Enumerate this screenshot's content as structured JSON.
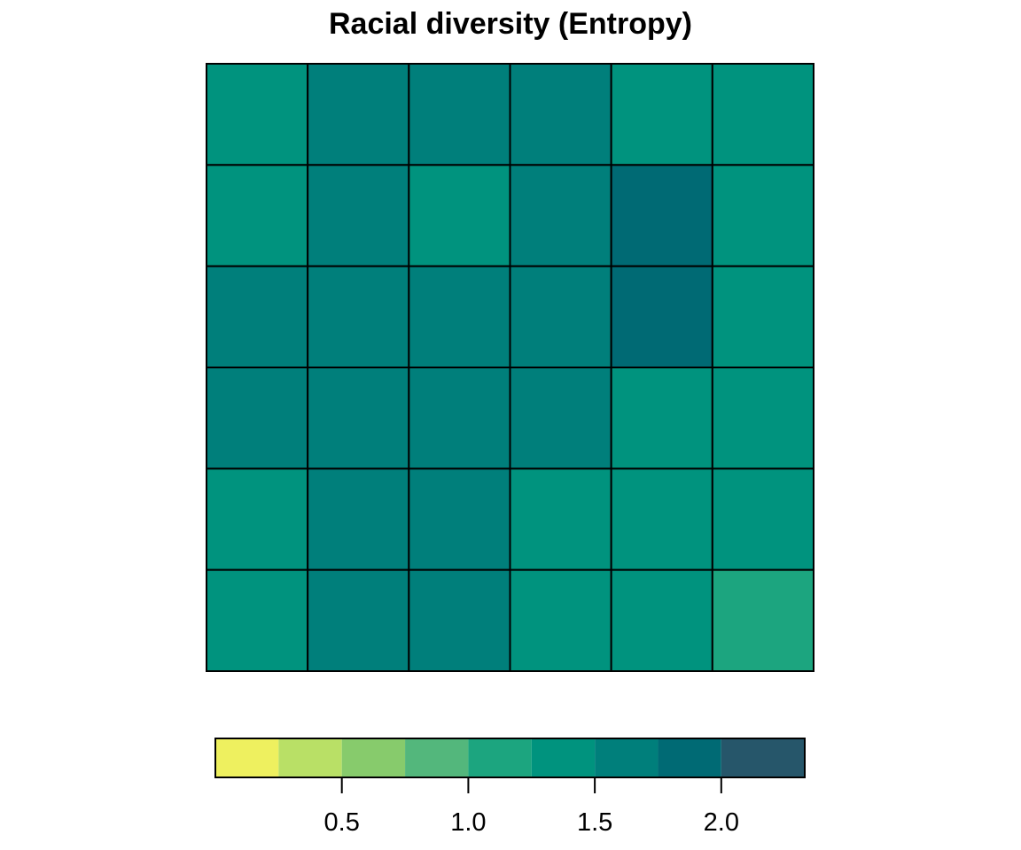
{
  "chart_data": {
    "type": "heatmap",
    "title": "Racial diversity (Entropy)",
    "xlabel": "",
    "ylabel": "",
    "grid": {
      "rows": 6,
      "cols": 6,
      "values": [
        [
          1.4,
          1.6,
          1.6,
          1.6,
          1.4,
          1.4
        ],
        [
          1.4,
          1.6,
          1.4,
          1.6,
          1.8,
          1.4
        ],
        [
          1.6,
          1.6,
          1.6,
          1.6,
          1.8,
          1.4
        ],
        [
          1.6,
          1.6,
          1.6,
          1.6,
          1.4,
          1.4
        ],
        [
          1.4,
          1.6,
          1.6,
          1.4,
          1.4,
          1.4
        ],
        [
          1.4,
          1.6,
          1.6,
          1.4,
          1.4,
          1.2
        ]
      ]
    },
    "legend": {
      "position": "bottom",
      "range": [
        0.0,
        2.33
      ],
      "breaks": [
        0.0,
        0.25,
        0.5,
        0.75,
        1.0,
        1.25,
        1.5,
        1.75,
        2.0,
        2.33
      ],
      "colors": [
        "#EEF05F",
        "#B9E066",
        "#87CB6C",
        "#53B77C",
        "#1CA57F",
        "#00937E",
        "#007F7B",
        "#006A74",
        "#26566A"
      ],
      "ticks": [
        0.5,
        1.0,
        1.5,
        2.0
      ],
      "tick_labels": [
        "0.5",
        "1.0",
        "1.5",
        "2.0"
      ]
    },
    "border_color": "#000000"
  }
}
